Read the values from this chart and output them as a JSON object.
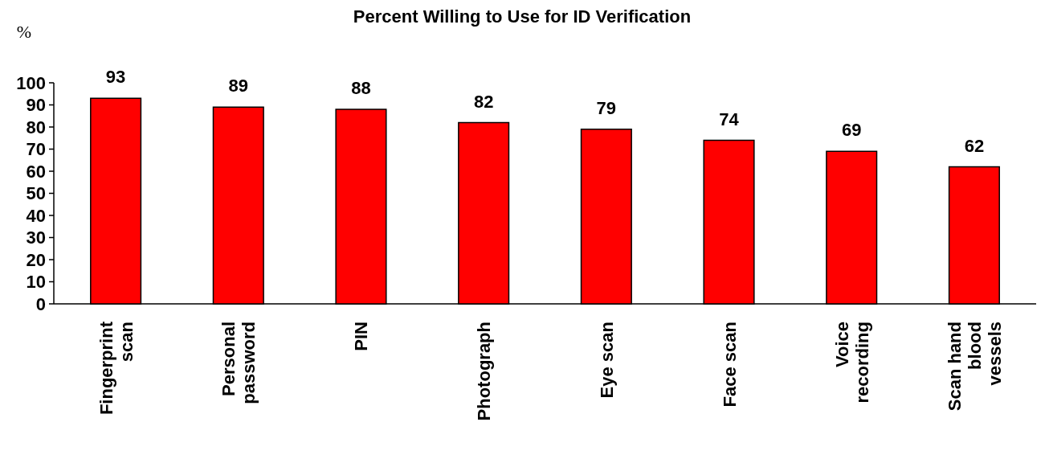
{
  "chart_data": {
    "type": "bar",
    "title": "Percent Willing to Use for ID Verification",
    "ylabel": "%",
    "categories": [
      "Fingerprint scan",
      "Personal password",
      "PIN",
      "Photograph",
      "Eye scan",
      "Face scan",
      "Voice recording",
      "Scan hand blood vessels"
    ],
    "values": [
      93,
      89,
      88,
      82,
      79,
      74,
      69,
      62
    ],
    "color": "#ff0000",
    "ylim": [
      0,
      100
    ],
    "yticks": [
      0,
      10,
      20,
      30,
      40,
      50,
      60,
      70,
      80,
      90,
      100
    ],
    "data_labels": true,
    "grid": false
  }
}
